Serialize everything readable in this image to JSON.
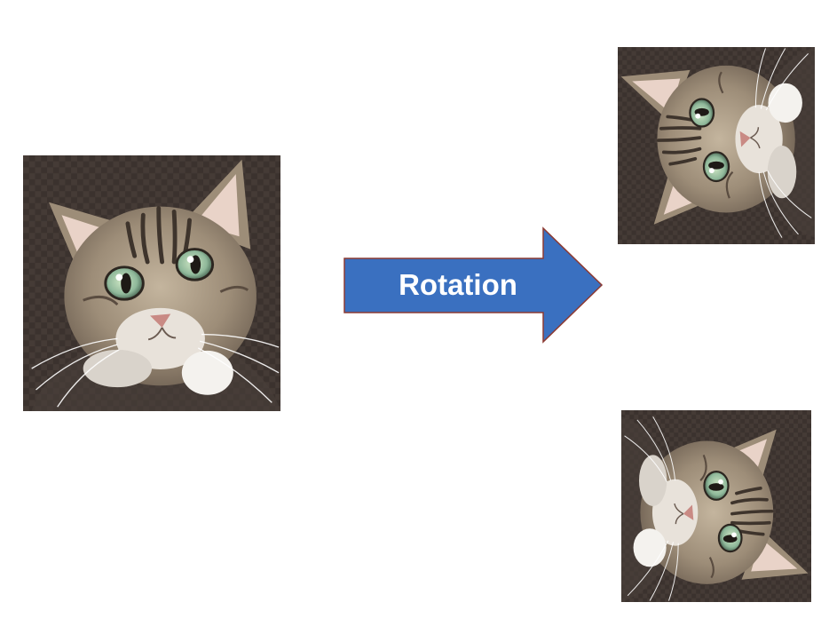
{
  "diagram": {
    "arrow_label": "Rotation",
    "arrow_color": "#3a70c0",
    "arrow_border": "#8c3a33"
  },
  "images": [
    {
      "role": "original",
      "rotation_deg": 0
    },
    {
      "role": "rotated",
      "rotation_deg": -90
    },
    {
      "role": "rotated",
      "rotation_deg": 90
    }
  ]
}
